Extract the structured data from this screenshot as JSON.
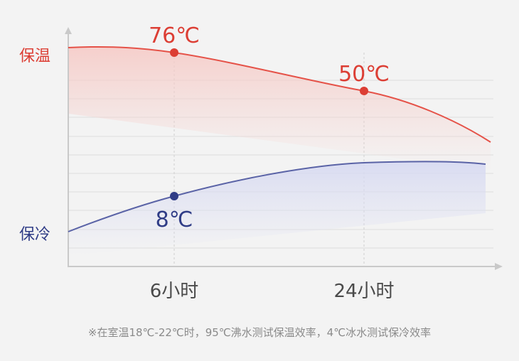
{
  "chart_data": {
    "type": "line",
    "x_ticks": [
      "6小时",
      "24小时"
    ],
    "series": [
      {
        "name": "保温",
        "color": "#e55248",
        "points": [
          [
            0,
            80
          ],
          [
            6,
            76
          ],
          [
            24,
            50
          ],
          [
            35,
            26
          ]
        ],
        "labeled_points": [
          {
            "x": 6,
            "y": 76,
            "label": "76℃"
          },
          {
            "x": 24,
            "y": 50,
            "label": "50℃"
          }
        ]
      },
      {
        "name": "保冷",
        "color": "#5a63a6",
        "points": [
          [
            0,
            -8
          ],
          [
            6,
            8
          ],
          [
            24,
            22
          ],
          [
            35,
            23
          ]
        ],
        "labeled_points": [
          {
            "x": 6,
            "y": 8,
            "label": "8℃"
          }
        ]
      }
    ],
    "note": "※在室温18℃-22℃时，95℃沸水测试保温效率，4℃冰水测试保冷效率"
  }
}
